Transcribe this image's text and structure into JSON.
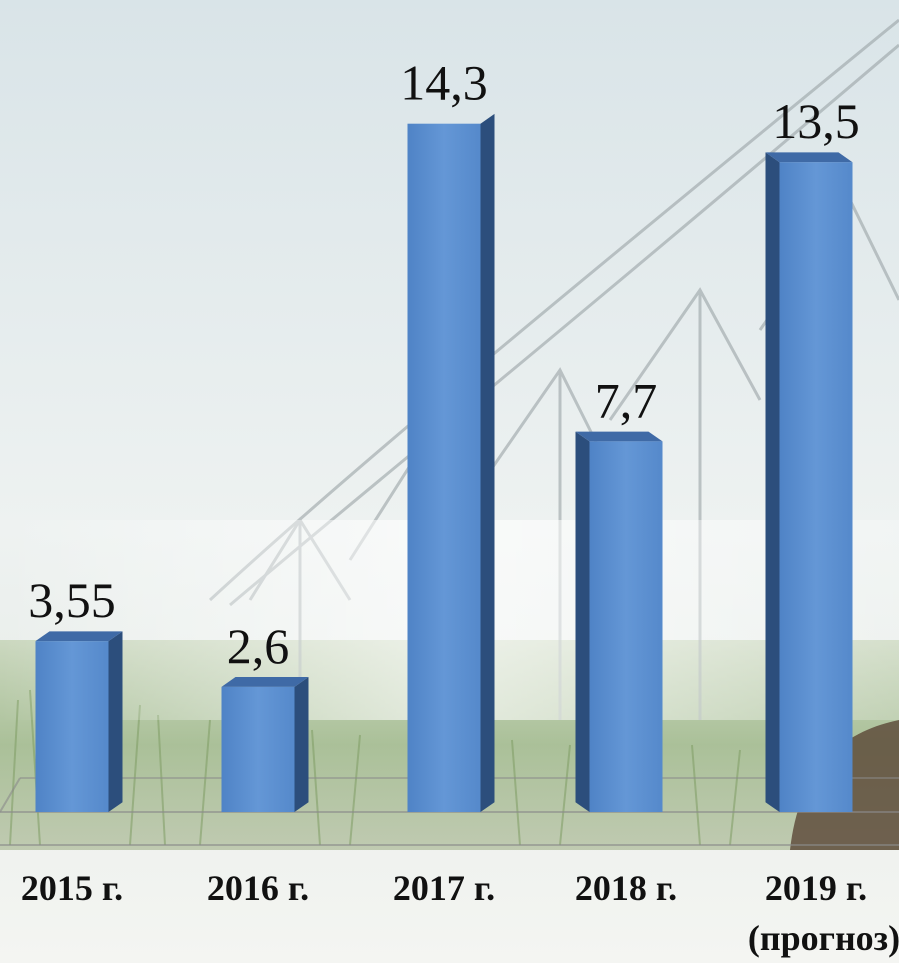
{
  "chart_data": {
    "type": "bar",
    "categories": [
      "2015 г.",
      "2016 г.",
      "2017 г.",
      "2018 г.",
      "2019 г."
    ],
    "category_sublabels": [
      "",
      "",
      "",
      "",
      "(прогноз)"
    ],
    "values": [
      3.55,
      2.6,
      14.3,
      7.7,
      13.5
    ],
    "value_labels": [
      "3,55",
      "2,6",
      "14,3",
      "7,7",
      "13,5"
    ],
    "ylim": [
      0,
      15
    ],
    "grid": false,
    "legend": "none",
    "style": "3d",
    "background": "center-pivot irrigation field photo",
    "colors": {
      "bar_front": "#5b8fd1",
      "bar_side": "#2c4e7c",
      "bar_top": "#3f6aa6",
      "text": "#111111"
    }
  }
}
